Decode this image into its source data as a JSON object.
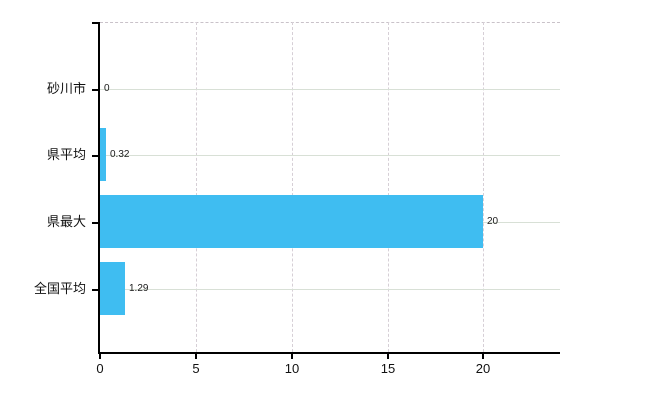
{
  "chart_data": {
    "type": "bar",
    "orientation": "horizontal",
    "title": "",
    "categories": [
      "砂川市",
      "県平均",
      "県最大",
      "全国平均"
    ],
    "values": [
      0,
      0.32,
      20,
      1.29
    ],
    "value_labels": [
      "0",
      "0.32",
      "20",
      "1.29"
    ],
    "xlim": [
      0,
      24
    ],
    "x_ticks": [
      0,
      5,
      10,
      15,
      20
    ],
    "x_tick_labels": [
      "0",
      "5",
      "10",
      "15",
      "20"
    ],
    "ylabel": "",
    "xlabel": "",
    "grid": "on",
    "legend": "none",
    "colors": {
      "bar": "#3fbdf1",
      "axis": "#000000",
      "h_grid": "#d8e0d6",
      "v_grid": "#d6cfd6",
      "top_border": "#c9c2c9",
      "text": "#111111",
      "value_text": "#1a1a1a",
      "background": "#ffffff"
    }
  }
}
